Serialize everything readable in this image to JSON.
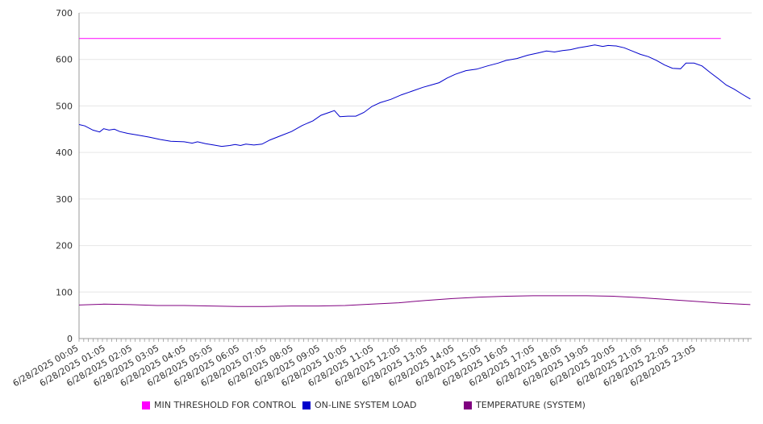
{
  "chart_data": {
    "type": "line",
    "ylim": [
      0,
      700
    ],
    "yticks": [
      "0",
      "100",
      "200",
      "300",
      "400",
      "500",
      "600",
      "700"
    ],
    "x_tick_labels": [
      "6/28/2025 00:05",
      "6/28/2025 01:05",
      "6/28/2025 02:05",
      "6/28/2025 03:05",
      "6/28/2025 04:05",
      "6/28/2025 05:05",
      "6/28/2025 06:05",
      "6/28/2025 07:05",
      "6/28/2025 08:05",
      "6/28/2025 09:05",
      "6/28/2025 10:05",
      "6/28/2025 11:05",
      "6/28/2025 12:05",
      "6/28/2025 13:05",
      "6/28/2025 14:05",
      "6/28/2025 15:05",
      "6/28/2025 16:05",
      "6/28/2025 17:05",
      "6/28/2025 18:05",
      "6/28/2025 19:05",
      "6/28/2025 20:05",
      "6/28/2025 21:05",
      "6/28/2025 22:05",
      "6/28/2025 23:05"
    ],
    "x_hours": [
      0.0833,
      24.0
    ],
    "grid": true,
    "legend_position": "bottom",
    "series": [
      {
        "name": "MIN THRESHOLD FOR CONTROL",
        "color": "#ff00ff",
        "points": [
          [
            0.0833,
            645
          ],
          [
            24.0,
            645
          ]
        ]
      },
      {
        "name": "ON-LINE SYSTEM LOAD",
        "color": "#0000cc",
        "points": [
          [
            0.0833,
            460
          ],
          [
            0.3,
            457
          ],
          [
            0.6,
            448
          ],
          [
            0.85,
            444
          ],
          [
            1.0,
            451
          ],
          [
            1.2,
            448
          ],
          [
            1.4,
            450
          ],
          [
            1.6,
            445
          ],
          [
            1.9,
            441
          ],
          [
            2.3,
            437
          ],
          [
            2.7,
            433
          ],
          [
            3.1,
            428
          ],
          [
            3.5,
            424
          ],
          [
            4.0,
            423
          ],
          [
            4.3,
            420
          ],
          [
            4.5,
            423
          ],
          [
            4.8,
            419
          ],
          [
            5.1,
            416
          ],
          [
            5.4,
            413
          ],
          [
            5.7,
            415
          ],
          [
            5.9,
            417
          ],
          [
            6.1,
            415
          ],
          [
            6.3,
            418
          ],
          [
            6.6,
            416
          ],
          [
            6.9,
            418
          ],
          [
            7.2,
            427
          ],
          [
            7.6,
            436
          ],
          [
            8.0,
            445
          ],
          [
            8.4,
            458
          ],
          [
            8.8,
            468
          ],
          [
            9.1,
            480
          ],
          [
            9.4,
            486
          ],
          [
            9.6,
            490
          ],
          [
            9.8,
            477
          ],
          [
            10.1,
            478
          ],
          [
            10.4,
            478
          ],
          [
            10.7,
            486
          ],
          [
            11.0,
            499
          ],
          [
            11.3,
            507
          ],
          [
            11.7,
            514
          ],
          [
            12.1,
            524
          ],
          [
            12.5,
            532
          ],
          [
            12.9,
            540
          ],
          [
            13.2,
            545
          ],
          [
            13.5,
            550
          ],
          [
            13.8,
            560
          ],
          [
            14.1,
            568
          ],
          [
            14.5,
            576
          ],
          [
            14.9,
            579
          ],
          [
            15.3,
            586
          ],
          [
            15.7,
            592
          ],
          [
            16.0,
            598
          ],
          [
            16.4,
            602
          ],
          [
            16.8,
            609
          ],
          [
            17.2,
            614
          ],
          [
            17.5,
            618
          ],
          [
            17.8,
            616
          ],
          [
            18.1,
            619
          ],
          [
            18.4,
            621
          ],
          [
            18.7,
            625
          ],
          [
            19.0,
            628
          ],
          [
            19.3,
            631
          ],
          [
            19.6,
            628
          ],
          [
            19.8,
            630
          ],
          [
            20.1,
            629
          ],
          [
            20.4,
            625
          ],
          [
            20.7,
            618
          ],
          [
            21.0,
            611
          ],
          [
            21.3,
            606
          ],
          [
            21.6,
            598
          ],
          [
            21.9,
            588
          ],
          [
            22.2,
            581
          ],
          [
            22.5,
            580
          ],
          [
            22.7,
            592
          ],
          [
            23.0,
            592
          ],
          [
            23.3,
            586
          ],
          [
            23.6,
            572
          ],
          [
            23.9,
            559
          ],
          [
            24.2,
            545
          ],
          [
            24.5,
            536
          ],
          [
            24.8,
            525
          ],
          [
            25.1,
            515
          ]
        ]
      },
      {
        "name": "TEMPERATURE (SYSTEM)",
        "color": "#800080",
        "points": [
          [
            0.0833,
            72
          ],
          [
            1.0,
            74
          ],
          [
            2.0,
            73
          ],
          [
            3.0,
            71
          ],
          [
            4.0,
            71
          ],
          [
            5.0,
            70
          ],
          [
            6.0,
            69
          ],
          [
            7.0,
            69
          ],
          [
            8.0,
            70
          ],
          [
            9.0,
            70
          ],
          [
            10.0,
            71
          ],
          [
            11.0,
            74
          ],
          [
            12.0,
            77
          ],
          [
            13.0,
            82
          ],
          [
            14.0,
            86
          ],
          [
            15.0,
            89
          ],
          [
            16.0,
            91
          ],
          [
            17.0,
            92
          ],
          [
            18.0,
            92
          ],
          [
            19.0,
            92
          ],
          [
            20.0,
            91
          ],
          [
            21.0,
            88
          ],
          [
            22.0,
            84
          ],
          [
            23.0,
            80
          ],
          [
            24.0,
            76
          ],
          [
            25.1,
            73
          ]
        ]
      }
    ]
  },
  "legend": {
    "items": [
      {
        "label": "MIN THRESHOLD FOR CONTROL",
        "color": "#ff00ff"
      },
      {
        "label": "ON-LINE SYSTEM LOAD",
        "color": "#0000cc"
      },
      {
        "label": "TEMPERATURE (SYSTEM)",
        "color": "#800080"
      }
    ]
  }
}
